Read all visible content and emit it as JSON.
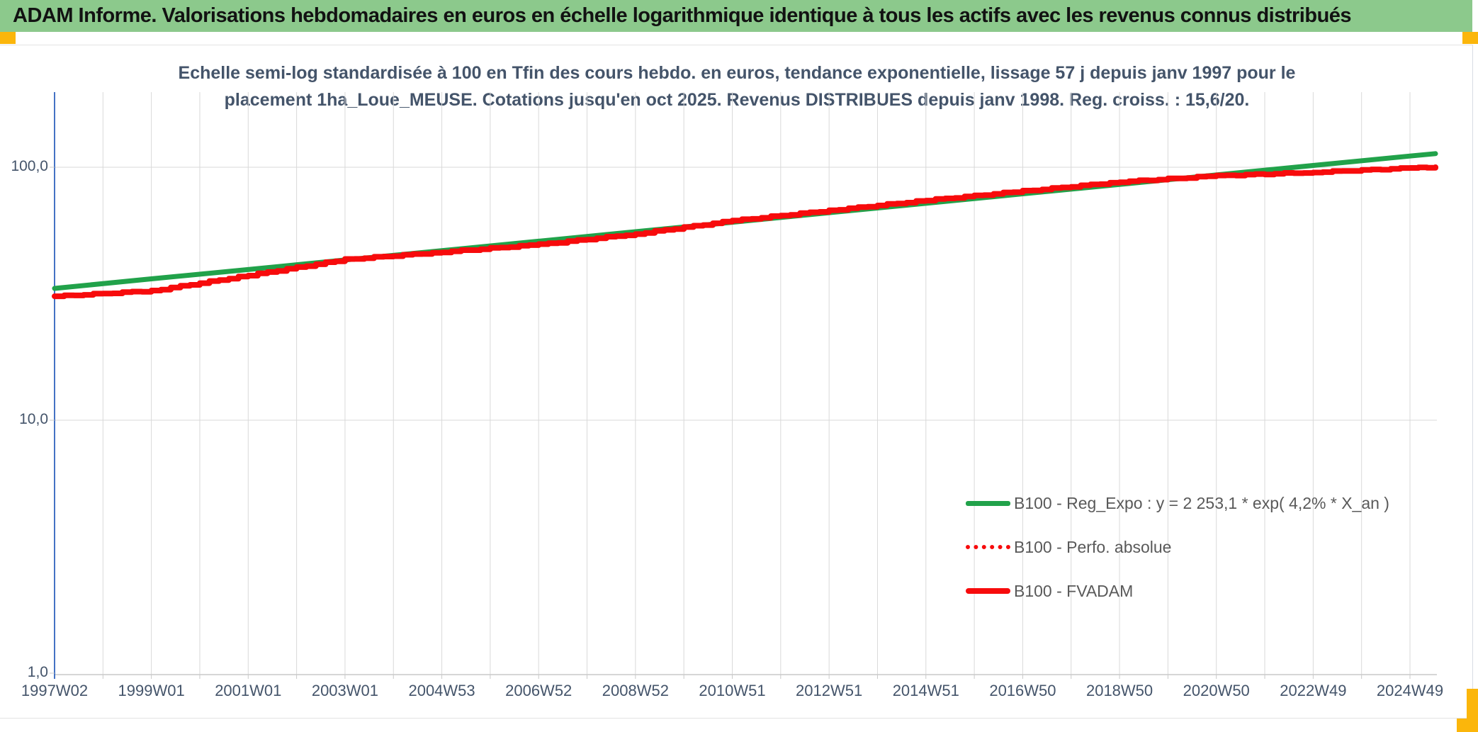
{
  "header": {
    "title": "ADAM Informe. Valorisations hebdomadaires en euros en échelle logarithmique identique à tous les actifs avec les revenus connus distribués"
  },
  "chart": {
    "title_line1": "Echelle semi-log standardisée à 100 en Tfin des cours hebdo. en euros, tendance exponentielle, lissage 57 j depuis janv 1997 pour le",
    "title_line2": "placement 1ha_Loue_MEUSE. Cotations jusqu'en oct 2025. Revenus DISTRIBUES depuis janv 1998. Reg. croiss. : 15,6/20.",
    "legend": [
      {
        "label": "B100 - Reg_Expo : y = 2 253,1 * exp( 4,2% *  X_an )",
        "color": "#21A24A",
        "style": "solid"
      },
      {
        "label": "B100 - Perfo. absolue",
        "color": "#F70B0C",
        "style": "dotted"
      },
      {
        "label": "B100 - FVADAM",
        "color": "#F70B0C",
        "style": "solid"
      }
    ]
  },
  "chart_data": {
    "type": "line",
    "x_scale": "weekly dates, one gridline per year, labels every 2 years",
    "y_scale": "log10",
    "ylim": [
      1,
      200
    ],
    "grid": true,
    "legend_position": "inside-right-bottom",
    "y_tick_values": [
      100,
      10,
      1
    ],
    "y_tick_labels": [
      "100,0",
      "10,0",
      "1,0"
    ],
    "categories": [
      "1997W02",
      "1999W01",
      "2001W01",
      "2003W01",
      "2004W53",
      "2006W52",
      "2008W52",
      "2010W51",
      "2012W51",
      "2014W51",
      "2016W50",
      "2018W50",
      "2020W50",
      "2022W49",
      "2024W49"
    ],
    "note": "each series carries a 16th value = final cotation (oct 2025) at the right end of the axis; FVADAM is standardized to 100 at that end date",
    "series": [
      {
        "name": "B100 - Reg_Expo : y = 2 253,1 * exp( 4,2% *  X_an )",
        "color": "#21A24A",
        "style": "solid",
        "width": 7,
        "stepped": false,
        "values": [
          33.2,
          36.2,
          39.4,
          43.0,
          46.8,
          51.0,
          55.6,
          60.6,
          66.1,
          72.0,
          78.5,
          85.5,
          93.2,
          101.6,
          110.7,
          113.2
        ]
      },
      {
        "name": "B100 - Perfo. absolue",
        "color": "#F70B0C",
        "style": "dotted",
        "width": 3.5,
        "stepped": false,
        "values": [
          30.9,
          32.5,
          37.4,
          43.2,
          46.2,
          49.5,
          54.5,
          61.5,
          67.5,
          74.0,
          80.5,
          87.5,
          92.5,
          95.5,
          99.3,
          100.0
        ]
      },
      {
        "name": "B100 - FVADAM",
        "color": "#F70B0C",
        "style": "solid",
        "width": 8,
        "stepped": true,
        "values": [
          30.9,
          32.5,
          37.4,
          43.2,
          46.2,
          49.5,
          54.5,
          61.5,
          67.5,
          74.0,
          80.5,
          87.5,
          92.5,
          95.5,
          99.3,
          100.0
        ]
      }
    ]
  },
  "colors": {
    "header_bg": "#8CC98C",
    "accent_yellow": "#FBB60B",
    "series_green": "#21A24A",
    "series_red": "#F70B0C",
    "y_axis_line": "#4472C4",
    "gridline": "#D9D9D9",
    "x_axis_line": "#C9C9C9",
    "title_text": "#44546A",
    "axis_text": "#44546A",
    "legend_text": "#595959"
  }
}
